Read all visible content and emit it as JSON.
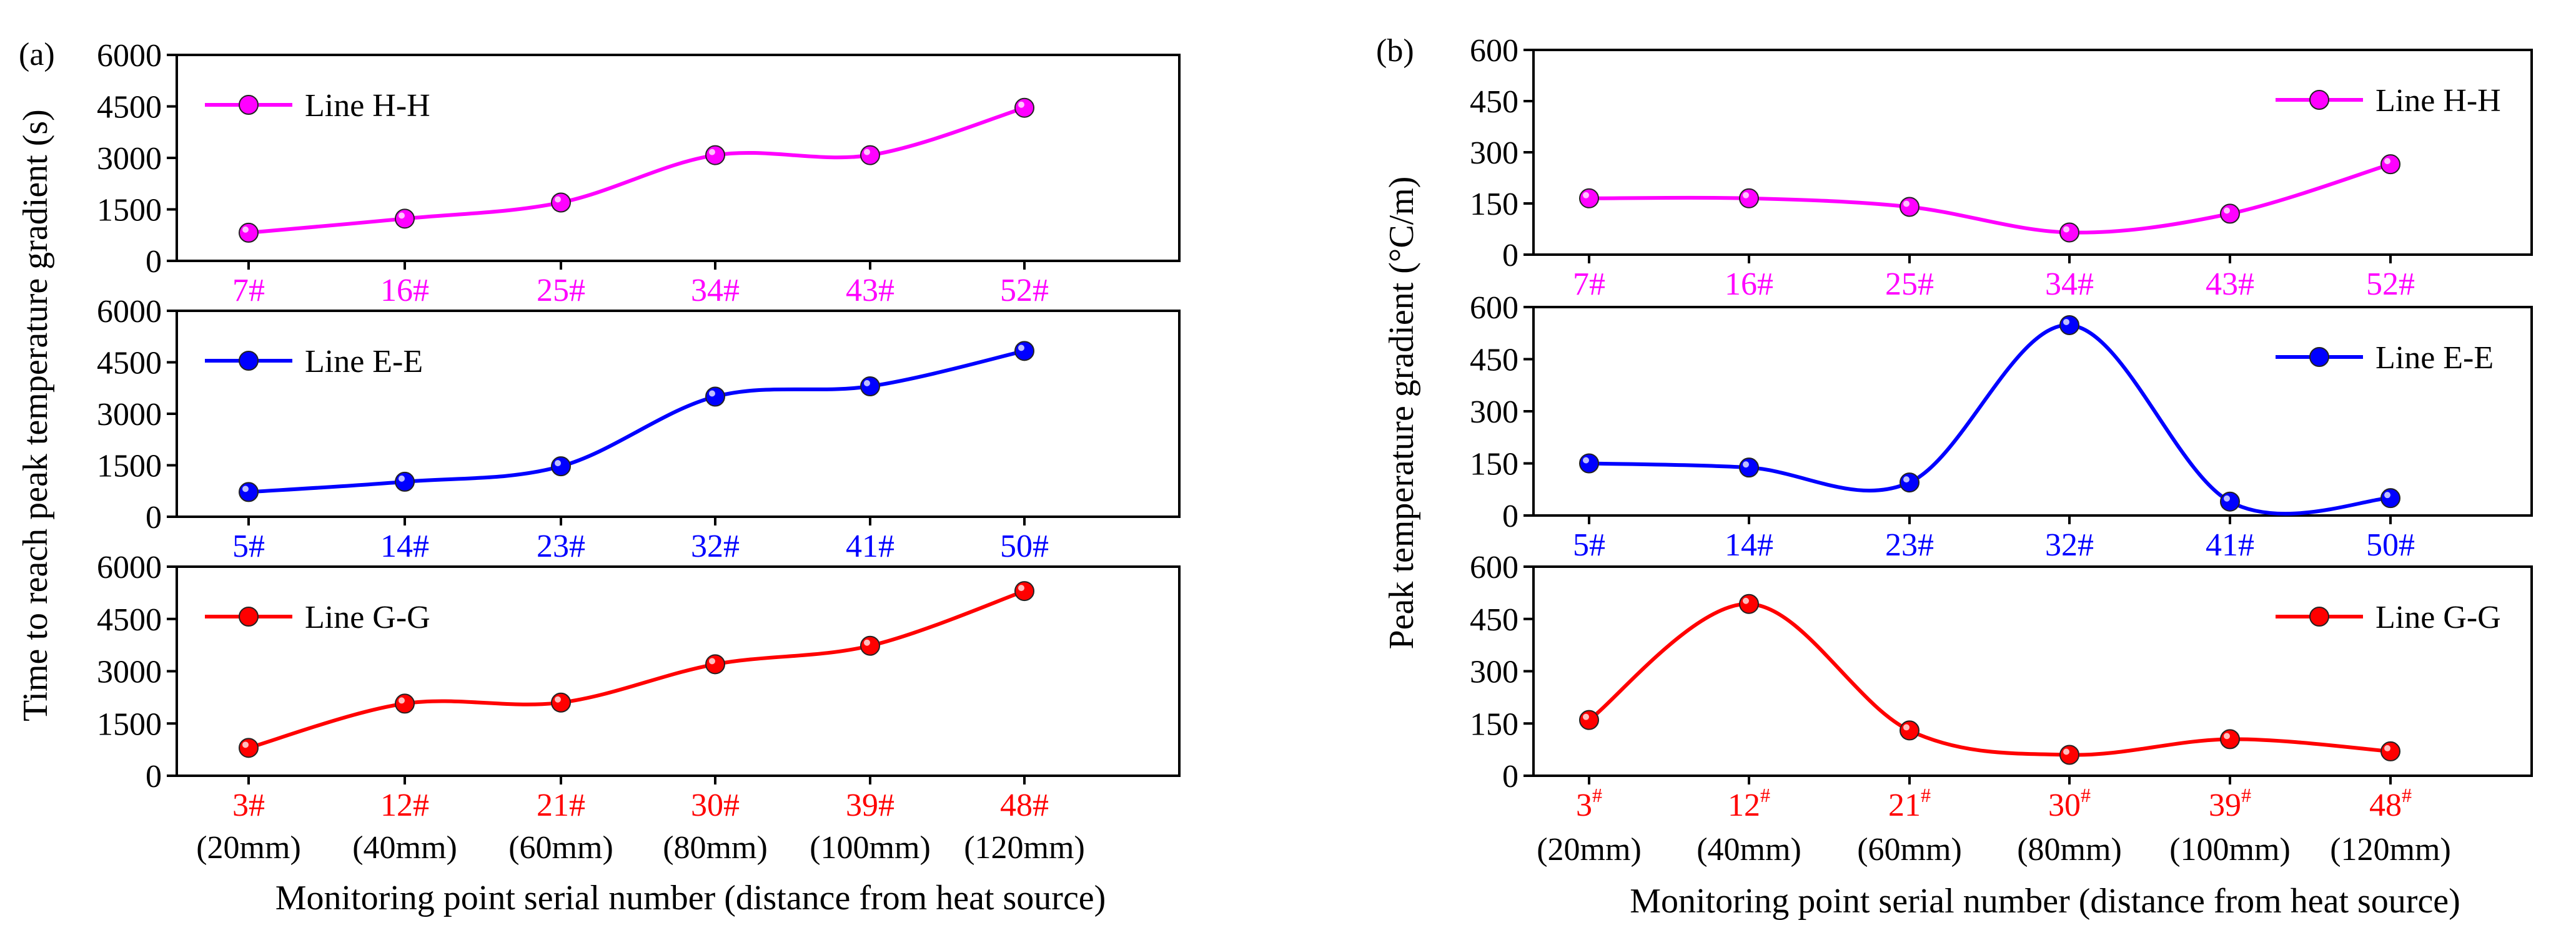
{
  "chart_data": [
    {
      "type": "line",
      "panel_label": "(a)",
      "ylabel": "Time to reach peak temperature gradient (s)",
      "xlabel": "Monitoring point serial number (distance from heat source)",
      "distance_labels": [
        "(20mm)",
        "(40mm)",
        "(60mm)",
        "(80mm)",
        "(100mm)",
        "(120mm)"
      ],
      "subplots": [
        {
          "name": "Line H-H",
          "color": "#ff00ff",
          "legend": "top-left",
          "ylim": [
            0,
            6000
          ],
          "yticks": [
            "0",
            "1500",
            "3000",
            "4500",
            "6000"
          ],
          "categories": [
            "7#",
            "16#",
            "25#",
            "34#",
            "43#",
            "52#"
          ],
          "values": [
            820,
            1230,
            1700,
            3080,
            3080,
            4460
          ]
        },
        {
          "name": "Line E-E",
          "color": "#0000ff",
          "legend": "top-left",
          "ylim": [
            0,
            6000
          ],
          "yticks": [
            "0",
            "1500",
            "3000",
            "4500",
            "6000"
          ],
          "categories": [
            "5#",
            "14#",
            "23#",
            "32#",
            "41#",
            "50#"
          ],
          "values": [
            720,
            1020,
            1470,
            3500,
            3800,
            4830
          ]
        },
        {
          "name": "Line G-G",
          "color": "#ff0000",
          "legend": "top-left",
          "ylim": [
            0,
            6000
          ],
          "yticks": [
            "0",
            "1500",
            "3000",
            "4500",
            "6000"
          ],
          "categories": [
            "3#",
            "12#",
            "21#",
            "30#",
            "39#",
            "48#"
          ],
          "values": [
            800,
            2070,
            2100,
            3200,
            3730,
            5300
          ]
        }
      ]
    },
    {
      "type": "line",
      "panel_label": "(b)",
      "ylabel": "Peak temperature gradient (°C/m)",
      "xlabel": "Monitoring point serial number (distance from heat source)",
      "distance_labels": [
        "(20mm)",
        "(40mm)",
        "(60mm)",
        "(80mm)",
        "(100mm)",
        "(120mm)"
      ],
      "subplots": [
        {
          "name": "Line H-H",
          "color": "#ff00ff",
          "legend": "top-right",
          "ylim": [
            0,
            600
          ],
          "yticks": [
            "0",
            "150",
            "300",
            "450",
            "600"
          ],
          "categories": [
            "7#",
            "16#",
            "25#",
            "34#",
            "43#",
            "52#"
          ],
          "values": [
            165,
            165,
            140,
            65,
            120,
            265
          ]
        },
        {
          "name": "Line E-E",
          "color": "#0000ff",
          "legend": "top-right",
          "ylim": [
            0,
            600
          ],
          "yticks": [
            "0",
            "150",
            "300",
            "450",
            "600"
          ],
          "categories": [
            "5#",
            "14#",
            "23#",
            "32#",
            "41#",
            "50#"
          ],
          "values": [
            150,
            138,
            95,
            548,
            40,
            50
          ]
        },
        {
          "name": "Line G-G",
          "color": "#ff0000",
          "legend": "top-right",
          "ylim": [
            0,
            600
          ],
          "yticks": [
            "0",
            "150",
            "300",
            "450",
            "600"
          ],
          "categories": [
            {
              "base": "3",
              "sup": "#"
            },
            {
              "base": "12",
              "sup": "#"
            },
            {
              "base": "21",
              "sup": "#"
            },
            {
              "base": "30",
              "sup": "#"
            },
            {
              "base": "39",
              "sup": "#"
            },
            {
              "base": "48",
              "sup": "#"
            }
          ],
          "values": [
            160,
            493,
            130,
            60,
            105,
            70
          ]
        }
      ]
    }
  ]
}
